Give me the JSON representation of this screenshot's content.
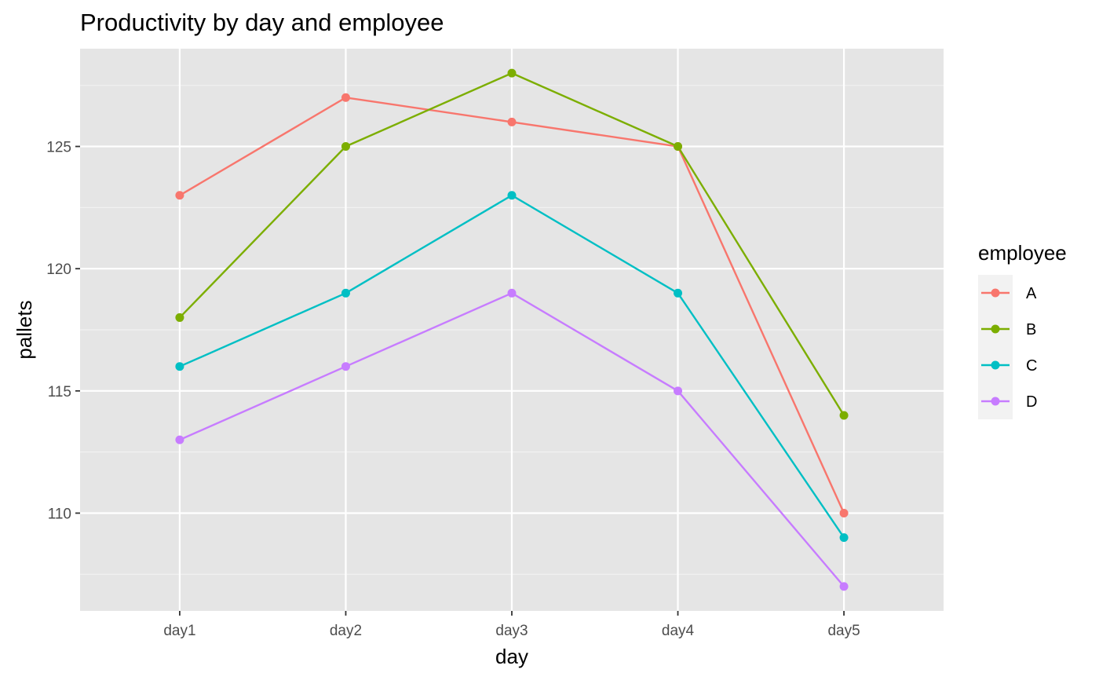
{
  "chart_data": {
    "type": "line",
    "title": "Productivity by day and employee",
    "xlabel": "day",
    "ylabel": "pallets",
    "categories": [
      "day1",
      "day2",
      "day3",
      "day4",
      "day5"
    ],
    "ylim": [
      106,
      129
    ],
    "yticks": [
      110,
      115,
      120,
      125
    ],
    "grid": true,
    "legend": {
      "title": "employee",
      "position": "right"
    },
    "series": [
      {
        "name": "A",
        "color": "#F8766D",
        "values": [
          123,
          127,
          126,
          125,
          110
        ]
      },
      {
        "name": "B",
        "color": "#7CAE00",
        "values": [
          118,
          125,
          128,
          125,
          114
        ]
      },
      {
        "name": "C",
        "color": "#00BFC4",
        "values": [
          116,
          119,
          123,
          119,
          109
        ]
      },
      {
        "name": "D",
        "color": "#C77CFF",
        "values": [
          113,
          116,
          119,
          115,
          107
        ]
      }
    ]
  }
}
